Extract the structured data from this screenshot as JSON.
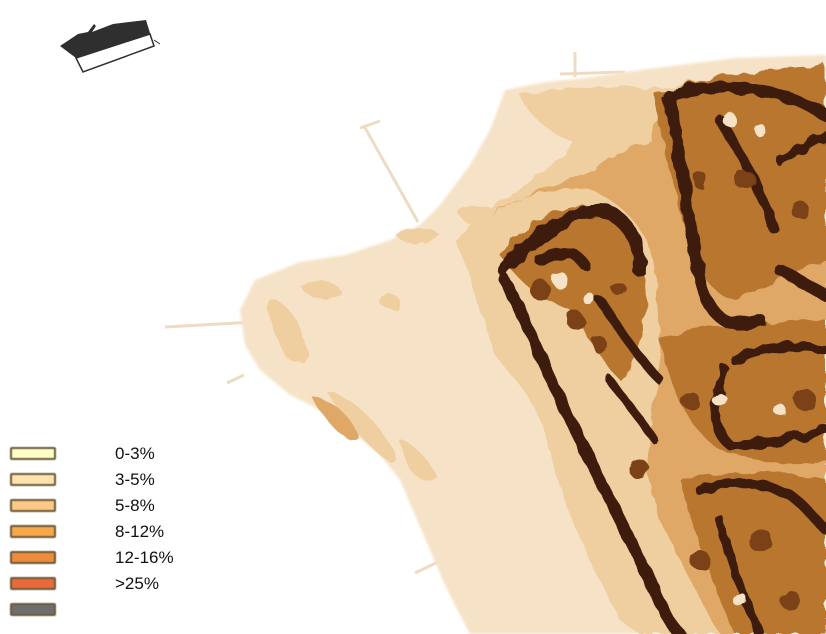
{
  "map": {
    "colors": {
      "land_base": "#f6e3c7",
      "slope_light": "#efcf9f",
      "slope_mid": "#e0a866",
      "slope_mid_dark": "#b8762f",
      "slope_dark": "#7a4218",
      "slope_darkest": "#3d1b08",
      "ship_icon": "#2f2f2f"
    },
    "icons": [
      "ship-icon"
    ]
  },
  "legend": {
    "items": [
      {
        "label": "0-3%",
        "color": "#ffffc8"
      },
      {
        "label": "3-5%",
        "color": "#fde3ad"
      },
      {
        "label": "5-8%",
        "color": "#fbc985"
      },
      {
        "label": "8-12%",
        "color": "#f5a94a"
      },
      {
        "label": "12-16%",
        "color": "#ee8c3c"
      },
      {
        "label": ">25%",
        "color": "#e86a3a"
      },
      {
        "label": "",
        "color": "#6e6e6e"
      }
    ]
  }
}
